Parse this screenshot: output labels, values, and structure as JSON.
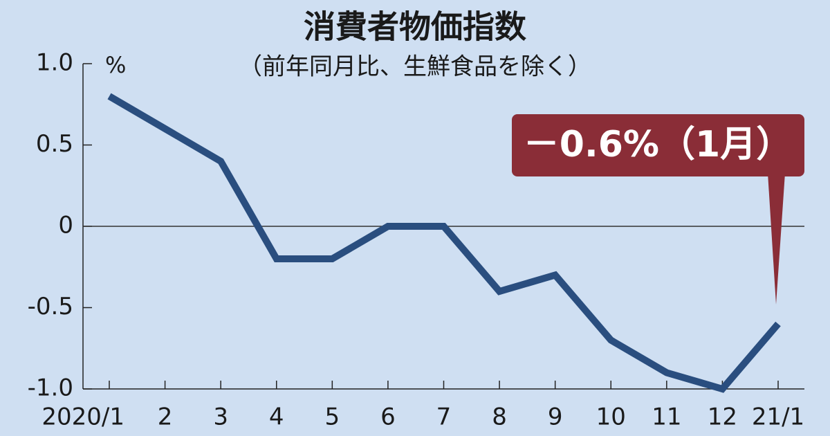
{
  "chart_data": {
    "type": "line",
    "title": "消費者物価指数",
    "subtitle": "（前年同月比、生鮮食品を除く）",
    "y_unit": "%",
    "annotation": "－0.6%（1月）",
    "annotation_color": "#8a2d37",
    "categories": [
      "2020/1",
      "2",
      "3",
      "4",
      "5",
      "6",
      "7",
      "8",
      "9",
      "10",
      "11",
      "12",
      "21/1"
    ],
    "series": [
      {
        "color": "#2a4e7f",
        "values": [
          0.8,
          0.6,
          0.4,
          -0.2,
          -0.2,
          0,
          0,
          -0.4,
          -0.3,
          -0.7,
          -0.9,
          -1.0,
          -0.6
        ]
      }
    ],
    "ylim": [
      -1,
      1
    ],
    "yticks": [
      {
        "value": 1,
        "label": "1.0"
      },
      0.5,
      0,
      -0.5,
      {
        "value": -1,
        "label": "-1.0"
      }
    ],
    "zero_line": true
  }
}
